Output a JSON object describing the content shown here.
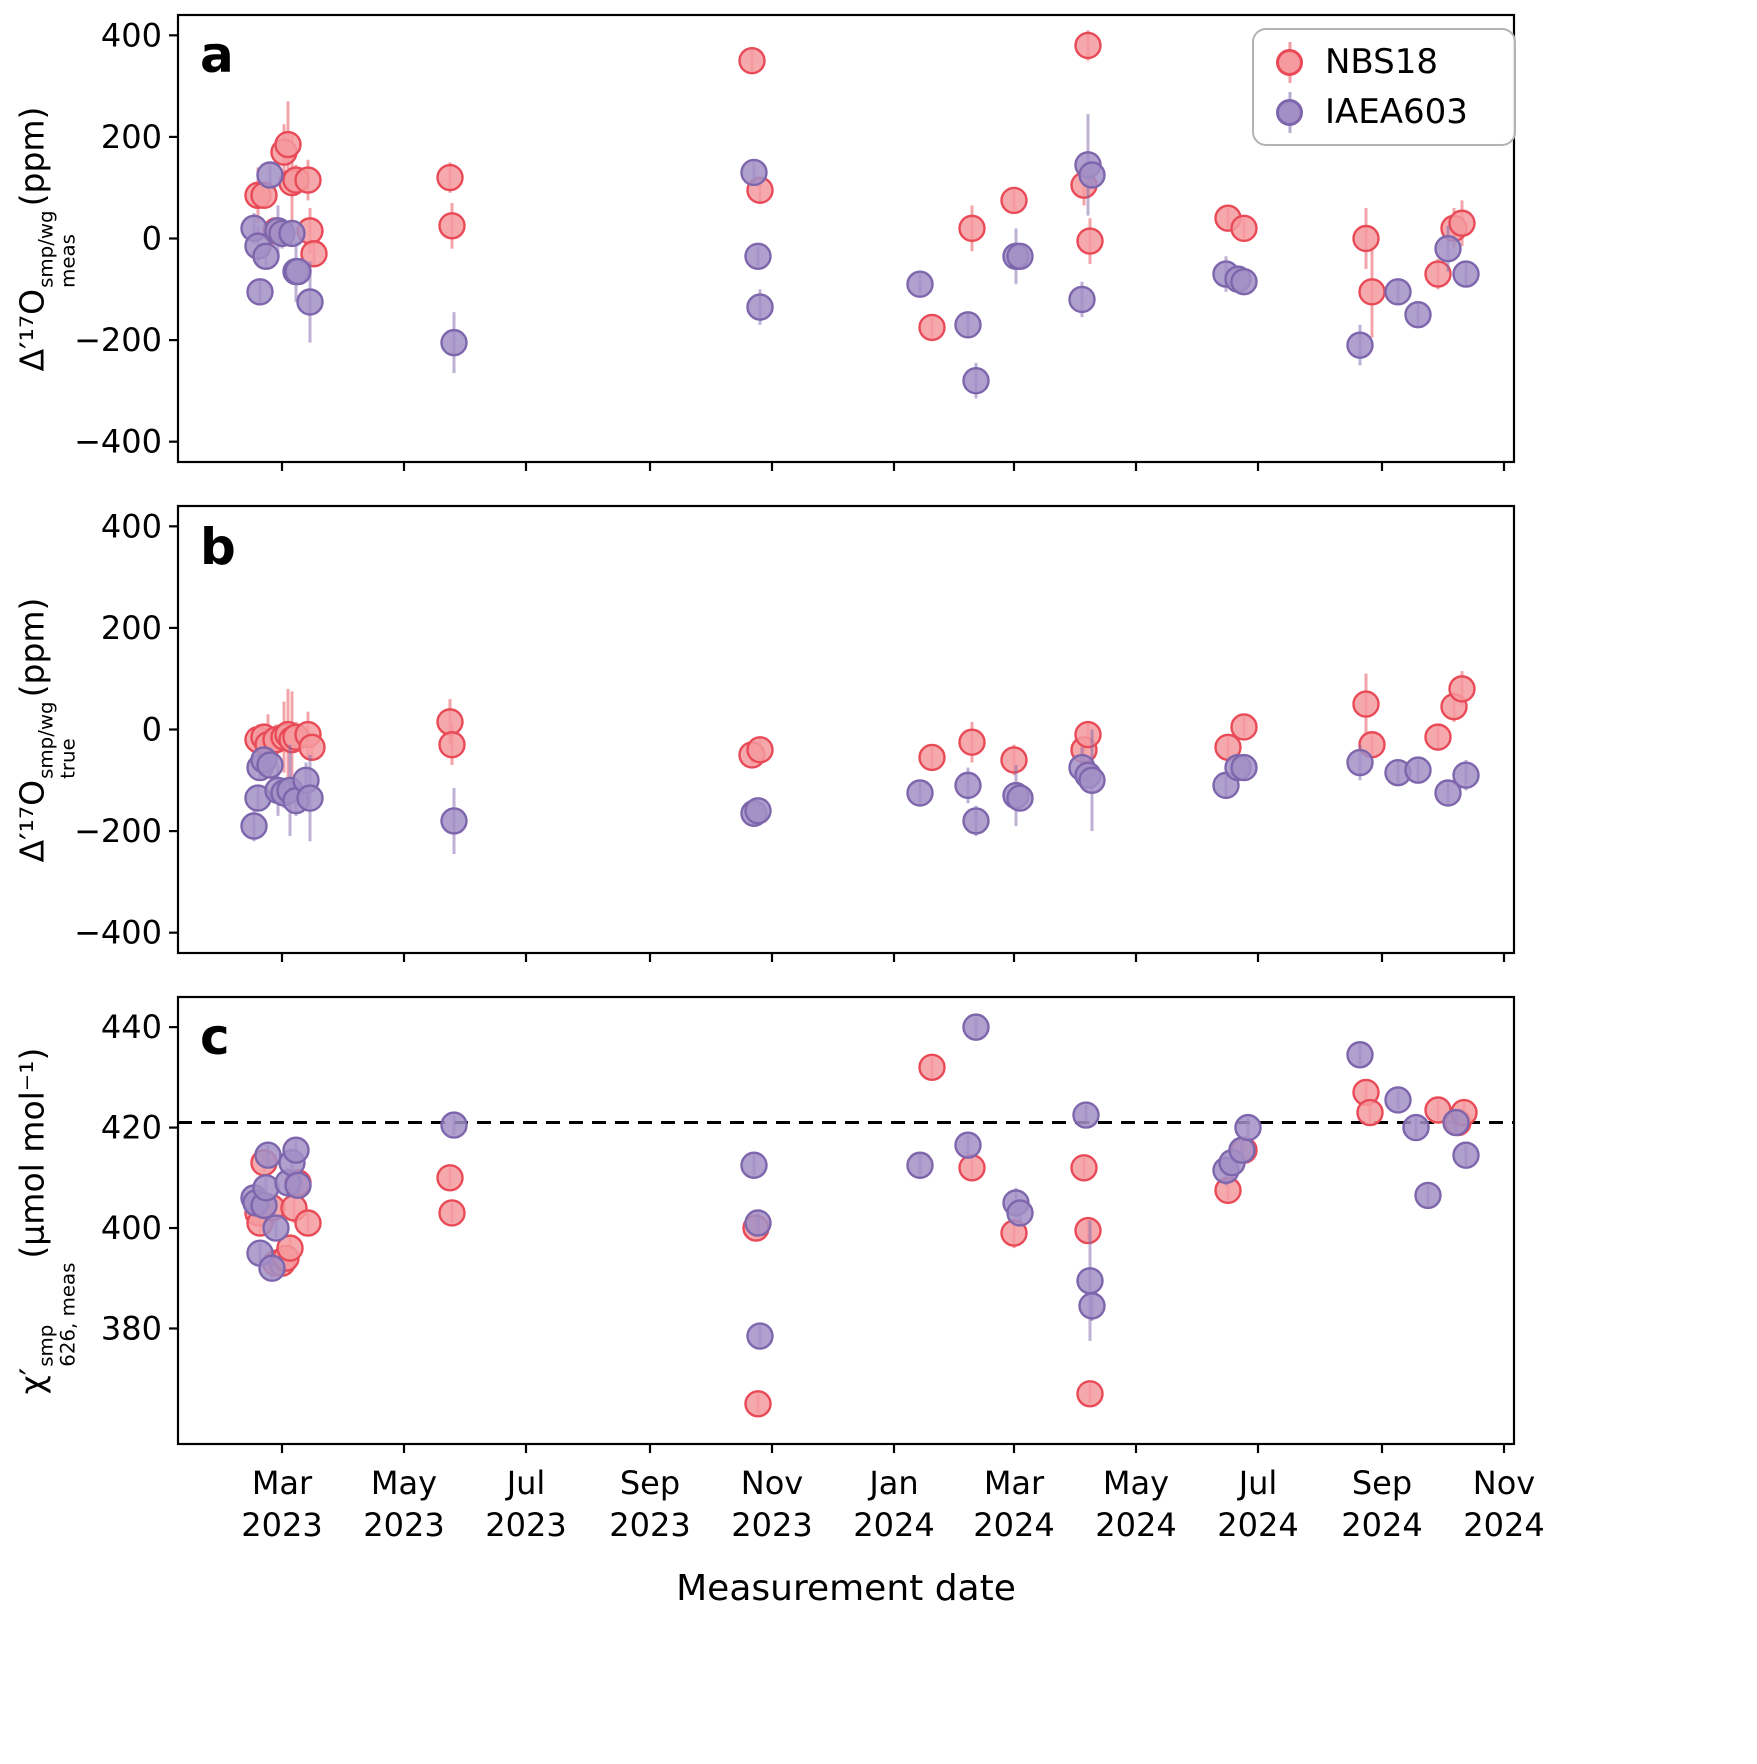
{
  "figure": {
    "background": "#ffffff",
    "x_axis": {
      "label": "Measurement date",
      "xlim": [
        "2023-01-08",
        "2024-11-06"
      ],
      "ticks": [
        {
          "date": "2023-03-01",
          "month": "Mar",
          "year": "2023"
        },
        {
          "date": "2023-05-01",
          "month": "May",
          "year": "2023"
        },
        {
          "date": "2023-07-01",
          "month": "Jul",
          "year": "2023"
        },
        {
          "date": "2023-09-01",
          "month": "Sep",
          "year": "2023"
        },
        {
          "date": "2023-11-01",
          "month": "Nov",
          "year": "2023"
        },
        {
          "date": "2024-01-01",
          "month": "Jan",
          "year": "2024"
        },
        {
          "date": "2024-03-01",
          "month": "Mar",
          "year": "2024"
        },
        {
          "date": "2024-05-01",
          "month": "May",
          "year": "2024"
        },
        {
          "date": "2024-07-01",
          "month": "Jul",
          "year": "2024"
        },
        {
          "date": "2024-09-01",
          "month": "Sep",
          "year": "2024"
        },
        {
          "date": "2024-11-01",
          "month": "Nov",
          "year": "2024"
        }
      ]
    },
    "legend": {
      "entries": [
        {
          "label": "NBS18"
        },
        {
          "label": "IAEA603"
        }
      ]
    },
    "series_styles": {
      "NBS18": {
        "fill": "#f59a9e",
        "edge": "#e84b57"
      },
      "IAEA603": {
        "fill": "#a28fc5",
        "edge": "#7e66ad"
      }
    }
  },
  "chart_data": [
    {
      "panel": "a",
      "type": "scatter",
      "ylabel": {
        "base": "Δ′¹⁷O",
        "sup": "smp/wg",
        "sub": "meas",
        "unit": "(ppm)"
      },
      "ylim": [
        -440,
        440
      ],
      "yticks": [
        400,
        200,
        0,
        -200,
        -400
      ],
      "series": [
        {
          "name": "NBS18",
          "points": [
            [
              "2023-02-17",
              85,
              55
            ],
            [
              "2023-02-20",
              85,
              25
            ],
            [
              "2023-02-26",
              15,
              25
            ],
            [
              "2023-03-02",
              170,
              55
            ],
            [
              "2023-03-04",
              185,
              85
            ],
            [
              "2023-03-06",
              110,
              95
            ],
            [
              "2023-03-08",
              115,
              30
            ],
            [
              "2023-03-14",
              115,
              40
            ],
            [
              "2023-03-15",
              15,
              45
            ],
            [
              "2023-03-17",
              -30,
              25
            ],
            [
              "2023-05-24",
              120,
              30
            ],
            [
              "2023-05-25",
              25,
              45
            ],
            [
              "2023-10-22",
              350,
              25
            ],
            [
              "2023-10-26",
              95,
              25
            ],
            [
              "2024-01-20",
              -175,
              20
            ],
            [
              "2024-02-09",
              20,
              45
            ],
            [
              "2024-03-01",
              75,
              20
            ],
            [
              "2024-04-05",
              105,
              40
            ],
            [
              "2024-04-07",
              380,
              30
            ],
            [
              "2024-04-08",
              -5,
              45
            ],
            [
              "2024-06-16",
              40,
              20
            ],
            [
              "2024-06-24",
              20,
              20
            ],
            [
              "2024-08-24",
              0,
              60
            ],
            [
              "2024-08-27",
              -105,
              90
            ],
            [
              "2024-09-29",
              -70,
              30
            ],
            [
              "2024-10-07",
              20,
              40
            ],
            [
              "2024-10-11",
              30,
              45
            ]
          ]
        },
        {
          "name": "IAEA603",
          "points": [
            [
              "2023-02-15",
              20,
              30
            ],
            [
              "2023-02-17",
              -15,
              40
            ],
            [
              "2023-02-18",
              -105,
              25
            ],
            [
              "2023-02-21",
              -35,
              25
            ],
            [
              "2023-02-23",
              125,
              25
            ],
            [
              "2023-02-27",
              15,
              50
            ],
            [
              "2023-03-01",
              10,
              30
            ],
            [
              "2023-03-06",
              10,
              25
            ],
            [
              "2023-03-08",
              -65,
              60
            ],
            [
              "2023-03-09",
              -65,
              25
            ],
            [
              "2023-03-15",
              -125,
              80
            ],
            [
              "2023-05-26",
              -205,
              60
            ],
            [
              "2023-10-23",
              130,
              25
            ],
            [
              "2023-10-25",
              -35,
              20
            ],
            [
              "2023-10-26",
              -135,
              35
            ],
            [
              "2024-01-14",
              -90,
              20
            ],
            [
              "2024-02-07",
              -170,
              25
            ],
            [
              "2024-02-11",
              -280,
              35
            ],
            [
              "2024-03-02",
              -35,
              55
            ],
            [
              "2024-03-04",
              -35,
              25
            ],
            [
              "2024-04-04",
              -120,
              35
            ],
            [
              "2024-04-07",
              145,
              100
            ],
            [
              "2024-04-09",
              125,
              25
            ],
            [
              "2024-06-15",
              -70,
              35
            ],
            [
              "2024-06-21",
              -80,
              25
            ],
            [
              "2024-06-24",
              -85,
              25
            ],
            [
              "2024-08-21",
              -210,
              40
            ],
            [
              "2024-09-09",
              -105,
              25
            ],
            [
              "2024-09-19",
              -150,
              25
            ],
            [
              "2024-10-04",
              -20,
              45
            ],
            [
              "2024-10-13",
              -70,
              25
            ]
          ]
        }
      ]
    },
    {
      "panel": "b",
      "type": "scatter",
      "ylabel": {
        "base": "Δ′¹⁷O",
        "sup": "smp/wg",
        "sub": "true",
        "unit": "(ppm)"
      },
      "ylim": [
        -440,
        440
      ],
      "yticks": [
        400,
        200,
        0,
        -200,
        -400
      ],
      "series": [
        {
          "name": "NBS18",
          "points": [
            [
              "2023-02-17",
              -20,
              30
            ],
            [
              "2023-02-20",
              -15,
              25
            ],
            [
              "2023-02-22",
              -30,
              60
            ],
            [
              "2023-02-26",
              -20,
              30
            ],
            [
              "2023-03-02",
              -15,
              70
            ],
            [
              "2023-03-04",
              -10,
              90
            ],
            [
              "2023-03-06",
              -20,
              95
            ],
            [
              "2023-03-08",
              -15,
              30
            ],
            [
              "2023-03-14",
              -10,
              45
            ],
            [
              "2023-03-16",
              -35,
              25
            ],
            [
              "2023-05-24",
              15,
              45
            ],
            [
              "2023-05-25",
              -30,
              40
            ],
            [
              "2023-10-22",
              -50,
              20
            ],
            [
              "2023-10-26",
              -40,
              20
            ],
            [
              "2024-01-20",
              -55,
              20
            ],
            [
              "2024-02-09",
              -25,
              40
            ],
            [
              "2024-03-01",
              -60,
              30
            ],
            [
              "2024-04-05",
              -40,
              25
            ],
            [
              "2024-04-07",
              -10,
              25
            ],
            [
              "2024-06-16",
              -35,
              25
            ],
            [
              "2024-06-24",
              5,
              20
            ],
            [
              "2024-08-24",
              50,
              60
            ],
            [
              "2024-08-27",
              -30,
              25
            ],
            [
              "2024-09-29",
              -15,
              25
            ],
            [
              "2024-10-07",
              45,
              30
            ],
            [
              "2024-10-11",
              80,
              35
            ]
          ]
        },
        {
          "name": "IAEA603",
          "points": [
            [
              "2023-02-15",
              -190,
              30
            ],
            [
              "2023-02-17",
              -135,
              25
            ],
            [
              "2023-02-18",
              -75,
              25
            ],
            [
              "2023-02-20",
              -60,
              25
            ],
            [
              "2023-02-23",
              -70,
              25
            ],
            [
              "2023-02-27",
              -120,
              50
            ],
            [
              "2023-03-02",
              -125,
              30
            ],
            [
              "2023-03-05",
              -120,
              90
            ],
            [
              "2023-03-08",
              -140,
              30
            ],
            [
              "2023-03-13",
              -100,
              35
            ],
            [
              "2023-03-15",
              -135,
              85
            ],
            [
              "2023-05-26",
              -180,
              65
            ],
            [
              "2023-10-23",
              -165,
              25
            ],
            [
              "2023-10-25",
              -160,
              20
            ],
            [
              "2024-01-14",
              -125,
              20
            ],
            [
              "2024-02-07",
              -110,
              35
            ],
            [
              "2024-02-11",
              -180,
              30
            ],
            [
              "2024-03-02",
              -130,
              60
            ],
            [
              "2024-03-04",
              -135,
              25
            ],
            [
              "2024-04-04",
              -75,
              40
            ],
            [
              "2024-04-07",
              -90,
              25
            ],
            [
              "2024-04-09",
              -100,
              100
            ],
            [
              "2024-06-15",
              -110,
              25
            ],
            [
              "2024-06-21",
              -75,
              25
            ],
            [
              "2024-06-24",
              -75,
              25
            ],
            [
              "2024-08-21",
              -65,
              35
            ],
            [
              "2024-09-09",
              -85,
              25
            ],
            [
              "2024-09-19",
              -80,
              20
            ],
            [
              "2024-10-04",
              -125,
              25
            ],
            [
              "2024-10-13",
              -90,
              30
            ]
          ]
        }
      ]
    },
    {
      "panel": "c",
      "type": "scatter",
      "ylabel": {
        "base": "χ′",
        "sup": "smp",
        "sub": "626, meas",
        "unit": "(μmol mol⁻¹)"
      },
      "ylim": [
        357,
        446
      ],
      "yticks": [
        440,
        420,
        400,
        380
      ],
      "hline": 421,
      "hline_style": "dashed",
      "series": [
        {
          "name": "NBS18",
          "points": [
            [
              "2023-02-17",
              403,
              2
            ],
            [
              "2023-02-18",
              401,
              2
            ],
            [
              "2023-02-20",
              413,
              2
            ],
            [
              "2023-02-24",
              404,
              2
            ],
            [
              "2023-02-26",
              393,
              2
            ],
            [
              "2023-03-01",
              393,
              2
            ],
            [
              "2023-03-03",
              394,
              2
            ],
            [
              "2023-03-05",
              396,
              2
            ],
            [
              "2023-03-07",
              404,
              3
            ],
            [
              "2023-03-09",
              409,
              2
            ],
            [
              "2023-03-14",
              401,
              2
            ],
            [
              "2023-05-24",
              410,
              2
            ],
            [
              "2023-05-25",
              403,
              2
            ],
            [
              "2023-10-24",
              400,
              2
            ],
            [
              "2023-10-25",
              365,
              2
            ],
            [
              "2024-01-20",
              432,
              2
            ],
            [
              "2024-02-09",
              412,
              2
            ],
            [
              "2024-03-01",
              399,
              3
            ],
            [
              "2024-04-05",
              412,
              2
            ],
            [
              "2024-04-07",
              399.5,
              2
            ],
            [
              "2024-04-08",
              367,
              2
            ],
            [
              "2024-06-16",
              407.5,
              2
            ],
            [
              "2024-06-24",
              415.5,
              2
            ],
            [
              "2024-08-24",
              427,
              2
            ],
            [
              "2024-08-26",
              423,
              2
            ],
            [
              "2024-09-29",
              423.5,
              2
            ],
            [
              "2024-10-09",
              421,
              2
            ],
            [
              "2024-10-12",
              423,
              2
            ]
          ]
        },
        {
          "name": "IAEA603",
          "points": [
            [
              "2023-02-15",
              406,
              2
            ],
            [
              "2023-02-16",
              405,
              2
            ],
            [
              "2023-02-18",
              395,
              2
            ],
            [
              "2023-02-20",
              404.5,
              2
            ],
            [
              "2023-02-21",
              408,
              2
            ],
            [
              "2023-02-22",
              414.5,
              2
            ],
            [
              "2023-02-24",
              392,
              2
            ],
            [
              "2023-02-26",
              400,
              2
            ],
            [
              "2023-03-04",
              409,
              3
            ],
            [
              "2023-03-06",
              413,
              2
            ],
            [
              "2023-03-08",
              415.5,
              2
            ],
            [
              "2023-03-09",
              408.5,
              2
            ],
            [
              "2023-05-26",
              420.5,
              2
            ],
            [
              "2023-10-23",
              412.5,
              2
            ],
            [
              "2023-10-25",
              401,
              2
            ],
            [
              "2023-10-26",
              378.5,
              2
            ],
            [
              "2024-01-14",
              412.5,
              2
            ],
            [
              "2024-02-07",
              416.5,
              2
            ],
            [
              "2024-02-11",
              440,
              2
            ],
            [
              "2024-03-02",
              405,
              3
            ],
            [
              "2024-03-04",
              403,
              2
            ],
            [
              "2024-04-06",
              422.5,
              2
            ],
            [
              "2024-04-08",
              389.5,
              12
            ],
            [
              "2024-04-09",
              384.5,
              3
            ],
            [
              "2024-06-15",
              411.5,
              3
            ],
            [
              "2024-06-18",
              413,
              2
            ],
            [
              "2024-06-23",
              415.5,
              2
            ],
            [
              "2024-06-26",
              420,
              2
            ],
            [
              "2024-08-21",
              434.5,
              2
            ],
            [
              "2024-09-09",
              425.5,
              2
            ],
            [
              "2024-09-18",
              420,
              2
            ],
            [
              "2024-09-24",
              406.5,
              2
            ],
            [
              "2024-10-08",
              421,
              2
            ],
            [
              "2024-10-13",
              414.5,
              2
            ]
          ]
        }
      ]
    }
  ]
}
